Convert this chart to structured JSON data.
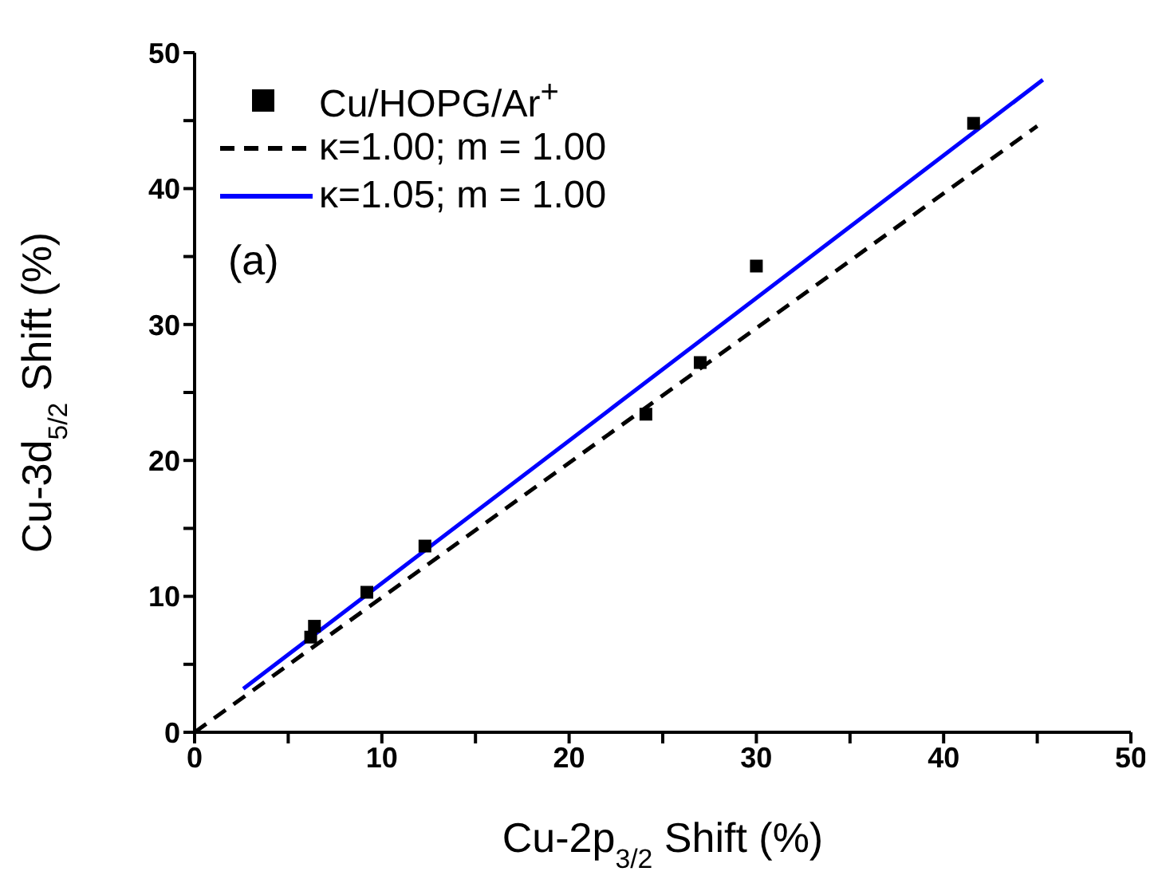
{
  "chart_data": {
    "type": "scatter",
    "xlabel": "Cu-2p$_{3/2}$ Shift (%)",
    "ylabel": "Cu-3d$_{5/2}$ Shift (%)",
    "annotations": [
      "(a)"
    ],
    "xlim": [
      0,
      50
    ],
    "ylim": [
      0,
      50
    ],
    "xticks": [
      0,
      {
        "value": 5,
        "label": null
      },
      10,
      {
        "value": 15,
        "label": null
      },
      20,
      {
        "value": 25,
        "label": null
      },
      30,
      {
        "value": 35,
        "label": null
      },
      40,
      {
        "value": 45,
        "label": null
      },
      50
    ],
    "yticks": [
      0,
      {
        "value": 5,
        "label": null
      },
      10,
      {
        "value": 15,
        "label": null
      },
      20,
      {
        "value": 25,
        "label": null
      },
      30,
      {
        "value": 35,
        "label": null
      },
      40,
      {
        "value": 45,
        "label": null
      },
      50
    ],
    "legend": "top left",
    "series": [
      {
        "name": "Cu/HOPG/Ar$^{+}$",
        "marker": "square",
        "color": "#000000",
        "x": [
          6.2,
          6.4,
          9.2,
          12.3,
          24.1,
          27.0,
          30.0,
          41.6
        ],
        "values": [
          7.0,
          7.8,
          10.3,
          13.7,
          23.4,
          27.2,
          34.3,
          44.8
        ]
      },
      {
        "name": "κ=1.00; m = 1.00",
        "type": "line",
        "line_style": "dashed",
        "marker": "none",
        "color": "#000000",
        "x": [
          0,
          45
        ],
        "values": [
          0,
          44.6
        ]
      },
      {
        "name": "κ=1.05; m = 1.00",
        "type": "line",
        "line_style": "solid",
        "marker": "none",
        "color": "#0000ff",
        "x": [
          2.6,
          45.3
        ],
        "values": [
          3.2,
          48.0
        ]
      }
    ]
  }
}
